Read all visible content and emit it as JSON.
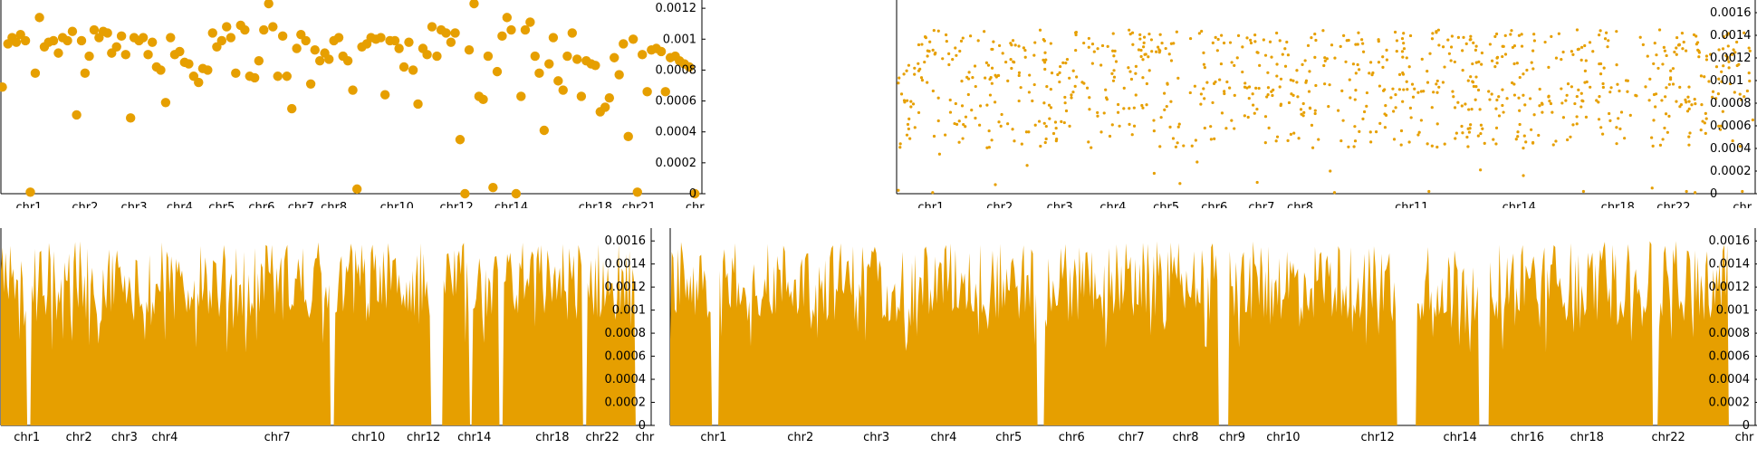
{
  "style": {
    "mark_color": "#e69f00",
    "axis_color": "#000000"
  },
  "chart_data": [
    {
      "type": "scatter",
      "ylim": [
        0,
        0.00123
      ],
      "y_ticks": [
        0,
        0.0002,
        0.0004,
        0.0006,
        0.0008,
        0.001,
        0.0012
      ],
      "y_tick_labels": [
        "0",
        "0.0002",
        "0.0004",
        "0.0006",
        "0.0008",
        "0.001",
        "0.0012"
      ],
      "x_tick_labels": [
        "chr1",
        "chr2",
        "chr3",
        "chr4",
        "chr5",
        "chr6",
        "chr7",
        "chr8",
        "chr10",
        "chr12",
        "chr14",
        "chr18",
        "chr21",
        "chr"
      ],
      "x_tick_fraction": [
        0.04,
        0.12,
        0.19,
        0.255,
        0.315,
        0.372,
        0.428,
        0.475,
        0.565,
        0.65,
        0.728,
        0.848,
        0.91,
        0.99
      ],
      "points": [
        [
          0.002,
          0.00069
        ],
        [
          0.01,
          0.00097
        ],
        [
          0.016,
          0.00101
        ],
        [
          0.022,
          0.00098
        ],
        [
          0.028,
          0.00103
        ],
        [
          0.035,
          0.00099
        ],
        [
          0.042,
          1e-05
        ],
        [
          0.049,
          0.00078
        ],
        [
          0.055,
          0.00114
        ],
        [
          0.062,
          0.00095
        ],
        [
          0.068,
          0.00098
        ],
        [
          0.075,
          0.00099
        ],
        [
          0.082,
          0.00091
        ],
        [
          0.088,
          0.00101
        ],
        [
          0.095,
          0.00099
        ],
        [
          0.102,
          0.00105
        ],
        [
          0.108,
          0.00051
        ],
        [
          0.115,
          0.00099
        ],
        [
          0.12,
          0.00078
        ],
        [
          0.126,
          0.00089
        ],
        [
          0.133,
          0.00106
        ],
        [
          0.14,
          0.00101
        ],
        [
          0.146,
          0.00105
        ],
        [
          0.152,
          0.00104
        ],
        [
          0.158,
          0.00091
        ],
        [
          0.165,
          0.00095
        ],
        [
          0.172,
          0.00102
        ],
        [
          0.178,
          0.0009
        ],
        [
          0.185,
          0.00049
        ],
        [
          0.19,
          0.00101
        ],
        [
          0.197,
          0.00099
        ],
        [
          0.203,
          0.00101
        ],
        [
          0.21,
          0.0009
        ],
        [
          0.216,
          0.00098
        ],
        [
          0.222,
          0.00082
        ],
        [
          0.228,
          0.0008
        ],
        [
          0.235,
          0.00059
        ],
        [
          0.242,
          0.00101
        ],
        [
          0.248,
          0.0009
        ],
        [
          0.255,
          0.00092
        ],
        [
          0.262,
          0.00085
        ],
        [
          0.268,
          0.00084
        ],
        [
          0.275,
          0.00076
        ],
        [
          0.282,
          0.00072
        ],
        [
          0.288,
          0.00081
        ],
        [
          0.295,
          0.0008
        ],
        [
          0.302,
          0.00104
        ],
        [
          0.308,
          0.00095
        ],
        [
          0.315,
          0.00099
        ],
        [
          0.322,
          0.00108
        ],
        [
          0.328,
          0.00101
        ],
        [
          0.335,
          0.00078
        ],
        [
          0.342,
          0.00109
        ],
        [
          0.348,
          0.00106
        ],
        [
          0.355,
          0.00076
        ],
        [
          0.362,
          0.00075
        ],
        [
          0.368,
          0.00086
        ],
        [
          0.375,
          0.00106
        ],
        [
          0.382,
          0.00123
        ],
        [
          0.388,
          0.00108
        ],
        [
          0.395,
          0.00076
        ],
        [
          0.402,
          0.00102
        ],
        [
          0.408,
          0.00076
        ],
        [
          0.415,
          0.00055
        ],
        [
          0.422,
          0.00094
        ],
        [
          0.428,
          0.00103
        ],
        [
          0.435,
          0.00099
        ],
        [
          0.442,
          0.00071
        ],
        [
          0.448,
          0.00093
        ],
        [
          0.455,
          0.00086
        ],
        [
          0.462,
          0.00091
        ],
        [
          0.468,
          0.00087
        ],
        [
          0.475,
          0.00099
        ],
        [
          0.482,
          0.00101
        ],
        [
          0.488,
          0.00089
        ],
        [
          0.495,
          0.00086
        ],
        [
          0.502,
          0.00067
        ],
        [
          0.508,
          3e-05
        ],
        [
          0.515,
          0.00095
        ],
        [
          0.522,
          0.00097
        ],
        [
          0.528,
          0.00101
        ],
        [
          0.535,
          0.001
        ],
        [
          0.542,
          0.00101
        ],
        [
          0.548,
          0.00064
        ],
        [
          0.555,
          0.00099
        ],
        [
          0.562,
          0.00099
        ],
        [
          0.568,
          0.00094
        ],
        [
          0.575,
          0.00082
        ],
        [
          0.582,
          0.00098
        ],
        [
          0.588,
          0.0008
        ],
        [
          0.595,
          0.00058
        ],
        [
          0.602,
          0.00094
        ],
        [
          0.608,
          0.0009
        ],
        [
          0.615,
          0.00108
        ],
        [
          0.622,
          0.00089
        ],
        [
          0.628,
          0.00106
        ],
        [
          0.635,
          0.00104
        ],
        [
          0.642,
          0.00098
        ],
        [
          0.648,
          0.00104
        ],
        [
          0.655,
          0.00035
        ],
        [
          0.662,
          0.0
        ],
        [
          0.668,
          0.00093
        ],
        [
          0.675,
          0.00123
        ],
        [
          0.682,
          0.00063
        ],
        [
          0.688,
          0.00061
        ],
        [
          0.695,
          0.00089
        ],
        [
          0.702,
          4e-05
        ],
        [
          0.708,
          0.00079
        ],
        [
          0.715,
          0.00102
        ],
        [
          0.722,
          0.00114
        ],
        [
          0.728,
          0.00106
        ],
        [
          0.735,
          0.0
        ],
        [
          0.742,
          0.00063
        ],
        [
          0.748,
          0.00106
        ],
        [
          0.755,
          0.00111
        ],
        [
          0.762,
          0.00089
        ],
        [
          0.768,
          0.00078
        ],
        [
          0.775,
          0.00041
        ],
        [
          0.782,
          0.00084
        ],
        [
          0.788,
          0.00101
        ],
        [
          0.795,
          0.00073
        ],
        [
          0.802,
          0.00067
        ],
        [
          0.808,
          0.00089
        ],
        [
          0.815,
          0.00104
        ],
        [
          0.822,
          0.00087
        ],
        [
          0.828,
          0.00063
        ],
        [
          0.835,
          0.00086
        ],
        [
          0.842,
          0.00084
        ],
        [
          0.848,
          0.00083
        ],
        [
          0.855,
          0.00053
        ],
        [
          0.862,
          0.00056
        ],
        [
          0.868,
          0.00062
        ],
        [
          0.875,
          0.00088
        ],
        [
          0.882,
          0.00077
        ],
        [
          0.888,
          0.00097
        ],
        [
          0.895,
          0.00037
        ],
        [
          0.902,
          0.001
        ],
        [
          0.908,
          1e-05
        ],
        [
          0.915,
          0.0009
        ],
        [
          0.922,
          0.00066
        ],
        [
          0.928,
          0.00093
        ],
        [
          0.935,
          0.00094
        ],
        [
          0.942,
          0.00092
        ],
        [
          0.948,
          0.00066
        ],
        [
          0.955,
          0.00088
        ],
        [
          0.962,
          0.00089
        ],
        [
          0.968,
          0.00086
        ],
        [
          0.975,
          0.00084
        ],
        [
          0.982,
          0.00082
        ],
        [
          0.99,
          0.0
        ]
      ]
    },
    {
      "type": "scatter",
      "ylim": [
        0,
        0.00168
      ],
      "y_ticks": [
        0,
        0.0002,
        0.0004,
        0.0006,
        0.0008,
        0.001,
        0.0012,
        0.0014,
        0.0016
      ],
      "y_tick_labels": [
        "0",
        "0.0002",
        "0.0004",
        "0.0006",
        "0.0008",
        "0.001",
        "0.0012",
        "0.0014",
        "0.0016"
      ],
      "x_tick_labels": [
        "chr1",
        "chr2",
        "chr3",
        "chr4",
        "chr5",
        "chr6",
        "chr7",
        "chr8",
        "chr11",
        "chr14",
        "chr18",
        "chr22",
        "chr"
      ],
      "x_tick_fraction": [
        0.04,
        0.12,
        0.19,
        0.252,
        0.314,
        0.37,
        0.425,
        0.47,
        0.6,
        0.725,
        0.84,
        0.905,
        0.985
      ],
      "n_points": 900,
      "y_typical": [
        0.0004,
        0.00145
      ],
      "outliers": [
        [
          0.002,
          3e-05
        ],
        [
          0.004,
          0.00041
        ],
        [
          0.042,
          1e-05
        ],
        [
          0.05,
          0.00035
        ],
        [
          0.115,
          8e-05
        ],
        [
          0.152,
          0.00025
        ],
        [
          0.3,
          0.00018
        ],
        [
          0.33,
          9e-05
        ],
        [
          0.35,
          0.00028
        ],
        [
          0.42,
          0.0001
        ],
        [
          0.505,
          0.0002
        ],
        [
          0.51,
          1e-05
        ],
        [
          0.62,
          2e-05
        ],
        [
          0.68,
          0.00021
        ],
        [
          0.73,
          0.00016
        ],
        [
          0.8,
          2e-05
        ],
        [
          0.88,
          5e-05
        ],
        [
          0.92,
          2e-05
        ],
        [
          0.93,
          1e-05
        ],
        [
          0.985,
          2e-05
        ]
      ]
    },
    {
      "type": "area",
      "ylim": [
        0,
        0.00168
      ],
      "y_ticks": [
        0,
        0.0002,
        0.0004,
        0.0006,
        0.0008,
        0.001,
        0.0012,
        0.0014,
        0.0016
      ],
      "y_tick_labels": [
        "0",
        "0.0002",
        "0.0004",
        "0.0006",
        "0.0008",
        "0.001",
        "0.0012",
        "0.0014",
        "0.0016"
      ],
      "x_tick_labels": [
        "chr1",
        "chr2",
        "chr3",
        "chr4",
        "chr7",
        "chr10",
        "chr12",
        "chr14",
        "chr18",
        "chr22",
        "chr"
      ],
      "x_tick_fraction": [
        0.04,
        0.12,
        0.19,
        0.252,
        0.425,
        0.565,
        0.65,
        0.728,
        0.848,
        0.925,
        0.99
      ],
      "n_bins": 420,
      "y_typical": [
        0.0009,
        0.0016
      ],
      "gaps": [
        [
          0.04,
          0.047
        ],
        [
          0.505,
          0.512
        ],
        [
          0.66,
          0.68
        ],
        [
          0.72,
          0.724
        ],
        [
          0.765,
          0.772
        ],
        [
          0.895,
          0.9
        ],
        [
          0.975,
          1.0
        ]
      ]
    },
    {
      "type": "area",
      "ylim": [
        0,
        0.00168
      ],
      "y_ticks": [
        0,
        0.0002,
        0.0004,
        0.0006,
        0.0008,
        0.001,
        0.0012,
        0.0014,
        0.0016
      ],
      "y_tick_labels": [
        "0",
        "0.0002",
        "0.0004",
        "0.0006",
        "0.0008",
        "0.001",
        "0.0012",
        "0.0014",
        "0.0016"
      ],
      "x_tick_labels": [
        "chr1",
        "chr2",
        "chr3",
        "chr4",
        "chr5",
        "chr6",
        "chr7",
        "chr8",
        "chr9",
        "chr10",
        "chr12",
        "chr14",
        "chr16",
        "chr18",
        "chr22",
        "chr"
      ],
      "x_tick_fraction": [
        0.04,
        0.12,
        0.19,
        0.252,
        0.312,
        0.37,
        0.425,
        0.475,
        0.518,
        0.565,
        0.652,
        0.728,
        0.79,
        0.845,
        0.92,
        0.99
      ],
      "n_bins": 700,
      "y_typical": [
        0.0009,
        0.0016
      ],
      "gaps": [
        [
          0.038,
          0.045
        ],
        [
          0.338,
          0.345
        ],
        [
          0.505,
          0.515
        ],
        [
          0.67,
          0.688
        ],
        [
          0.745,
          0.755
        ],
        [
          0.905,
          0.91
        ],
        [
          0.975,
          1.0
        ]
      ]
    }
  ]
}
